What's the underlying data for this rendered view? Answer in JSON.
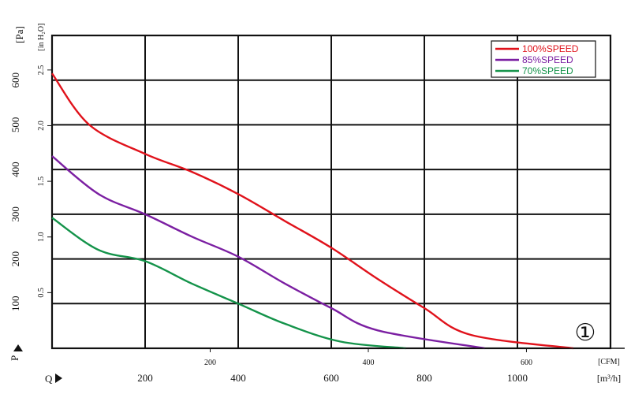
{
  "chart_data": {
    "type": "line",
    "x_unit_m3h": "[m³/h]",
    "x_unit_cfm": "[CFM]",
    "x_label_letter": "Q",
    "y_label_letter": "P",
    "y_unit_pa": "[Pa]",
    "y_unit_inh2o": "[in H₂O]",
    "x_m3h_ticks": [
      "200",
      "400",
      "600",
      "800",
      "1000"
    ],
    "x_cfm_ticks": [
      "200",
      "400",
      "600"
    ],
    "y_pa_ticks": [
      "100",
      "200",
      "300",
      "400",
      "500",
      "600"
    ],
    "y_inh2o_ticks": [
      "0.5",
      "1.0",
      "1.5",
      "2.0",
      "2.5"
    ],
    "xlim_m3h": [
      0,
      1200
    ],
    "ylim_pa": [
      0,
      700
    ],
    "grid": true,
    "legend_position": "top-right",
    "curve_label": "①",
    "series": [
      {
        "name": "100%SPEED",
        "color": "#e0121b",
        "points": [
          [
            0,
            615
          ],
          [
            80,
            500
          ],
          [
            200,
            435
          ],
          [
            300,
            395
          ],
          [
            400,
            345
          ],
          [
            500,
            285
          ],
          [
            600,
            225
          ],
          [
            700,
            155
          ],
          [
            800,
            90
          ],
          [
            900,
            30
          ],
          [
            1120,
            0
          ]
        ]
      },
      {
        "name": "85%SPEED",
        "color": "#7b1fa2",
        "points": [
          [
            0,
            430
          ],
          [
            100,
            345
          ],
          [
            200,
            300
          ],
          [
            300,
            250
          ],
          [
            400,
            205
          ],
          [
            500,
            145
          ],
          [
            600,
            90
          ],
          [
            700,
            40
          ],
          [
            930,
            0
          ]
        ]
      },
      {
        "name": "70%SPEED",
        "color": "#14934a",
        "points": [
          [
            0,
            292
          ],
          [
            100,
            220
          ],
          [
            200,
            195
          ],
          [
            300,
            145
          ],
          [
            400,
            100
          ],
          [
            500,
            55
          ],
          [
            620,
            15
          ],
          [
            760,
            0
          ]
        ]
      }
    ]
  }
}
